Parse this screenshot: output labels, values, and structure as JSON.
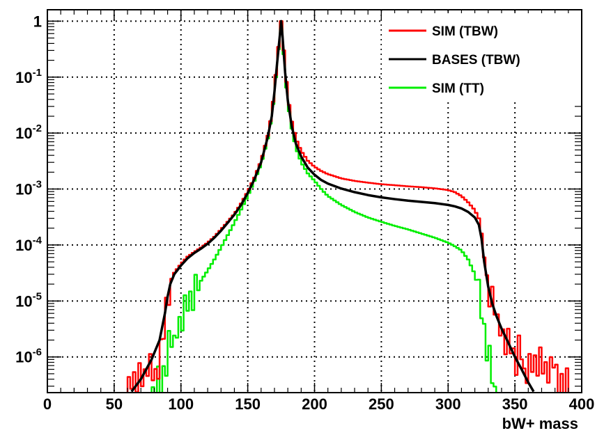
{
  "chart_data": {
    "type": "line",
    "title": "",
    "xlabel": "bW+ mass",
    "ylabel": "",
    "xlim": [
      0,
      400
    ],
    "ylim": [
      2.3e-07,
      1.6
    ],
    "yscale": "log",
    "grid": true,
    "legend_position": "top-right",
    "x_ticks": [
      "0",
      "50",
      "100",
      "150",
      "200",
      "250",
      "300",
      "350",
      "400"
    ],
    "y_ticks": [
      {
        "base": "1",
        "exp": ""
      },
      {
        "base": "10",
        "exp": "-1"
      },
      {
        "base": "10",
        "exp": "-2"
      },
      {
        "base": "10",
        "exp": "-3"
      },
      {
        "base": "10",
        "exp": "-4"
      },
      {
        "base": "10",
        "exp": "-5"
      },
      {
        "base": "10",
        "exp": "-6"
      }
    ],
    "series": [
      {
        "name": "SIM (TBW)",
        "color": "#ff0000",
        "style": "step",
        "points": [
          [
            60,
            2.4e-07
          ],
          [
            62,
            8e-07
          ],
          [
            66,
            2.5e-07
          ],
          [
            70,
            8e-07
          ],
          [
            74,
            2.5e-07
          ],
          [
            76,
            1.3e-06
          ],
          [
            80,
            5e-07
          ],
          [
            84,
            1.1e-06
          ],
          [
            86,
            1.5e-06
          ],
          [
            88,
            6e-06
          ],
          [
            90,
            1.3e-05
          ],
          [
            92,
            2.2e-05
          ],
          [
            95,
            3.2e-05
          ],
          [
            100,
            4.6e-05
          ],
          [
            105,
            6.2e-05
          ],
          [
            110,
            7.5e-05
          ],
          [
            115,
            9e-05
          ],
          [
            120,
            0.00011
          ],
          [
            125,
            0.00014
          ],
          [
            130,
            0.00019
          ],
          [
            135,
            0.00026
          ],
          [
            140,
            0.00036
          ],
          [
            145,
            0.00055
          ],
          [
            150,
            0.0009
          ],
          [
            155,
            0.0016
          ],
          [
            160,
            0.0032
          ],
          [
            165,
            0.009
          ],
          [
            168,
            0.022
          ],
          [
            170,
            0.06
          ],
          [
            172,
            0.2
          ],
          [
            174,
            0.6
          ],
          [
            175,
            1.0
          ],
          [
            176,
            0.6
          ],
          [
            178,
            0.15
          ],
          [
            180,
            0.045
          ],
          [
            183,
            0.016
          ],
          [
            186,
            0.008
          ],
          [
            190,
            0.0048
          ],
          [
            195,
            0.0032
          ],
          [
            200,
            0.0025
          ],
          [
            205,
            0.0021
          ],
          [
            210,
            0.00185
          ],
          [
            220,
            0.00155
          ],
          [
            230,
            0.0014
          ],
          [
            240,
            0.0013
          ],
          [
            250,
            0.00122
          ],
          [
            260,
            0.00117
          ],
          [
            270,
            0.00112
          ],
          [
            280,
            0.00108
          ],
          [
            290,
            0.00103
          ],
          [
            300,
            0.00096
          ],
          [
            305,
            0.00088
          ],
          [
            310,
            0.00075
          ],
          [
            315,
            0.00058
          ],
          [
            320,
            0.00042
          ],
          [
            323,
            0.0003
          ],
          [
            325,
            0.00016
          ],
          [
            327,
            6e-05
          ],
          [
            330,
            2e-05
          ],
          [
            333,
            1e-05
          ],
          [
            336,
            6e-06
          ],
          [
            340,
            3.5e-06
          ],
          [
            344,
            2.2e-06
          ],
          [
            348,
            1.5e-06
          ],
          [
            350,
            8e-07
          ],
          [
            354,
            1.6e-06
          ],
          [
            358,
            4e-07
          ],
          [
            362,
            1.6e-06
          ],
          [
            366,
            5e-07
          ],
          [
            370,
            1.5e-06
          ],
          [
            374,
            3e-07
          ],
          [
            378,
            1.3e-06
          ],
          [
            382,
            6e-07
          ],
          [
            386,
            2.5e-07
          ],
          [
            390,
            6e-07
          ]
        ]
      },
      {
        "name": "BASES (TBW)",
        "color": "#000000",
        "style": "line",
        "points": [
          [
            63,
            2.4e-07
          ],
          [
            70,
            4e-07
          ],
          [
            78,
            9e-07
          ],
          [
            84,
            2e-06
          ],
          [
            88,
            6e-06
          ],
          [
            90,
            1.2e-05
          ],
          [
            92,
            2e-05
          ],
          [
            95,
            3e-05
          ],
          [
            100,
            4.3e-05
          ],
          [
            105,
            5.8e-05
          ],
          [
            110,
            7.2e-05
          ],
          [
            115,
            8.6e-05
          ],
          [
            120,
            0.000105
          ],
          [
            125,
            0.000135
          ],
          [
            130,
            0.00018
          ],
          [
            135,
            0.00025
          ],
          [
            140,
            0.00035
          ],
          [
            145,
            0.00052
          ],
          [
            150,
            0.00085
          ],
          [
            155,
            0.0015
          ],
          [
            160,
            0.003
          ],
          [
            165,
            0.0085
          ],
          [
            168,
            0.02
          ],
          [
            170,
            0.055
          ],
          [
            172,
            0.18
          ],
          [
            174,
            0.55
          ],
          [
            175,
            1.0
          ],
          [
            176,
            0.55
          ],
          [
            178,
            0.12
          ],
          [
            180,
            0.038
          ],
          [
            183,
            0.013
          ],
          [
            186,
            0.0065
          ],
          [
            190,
            0.0038
          ],
          [
            195,
            0.0024
          ],
          [
            200,
            0.0018
          ],
          [
            205,
            0.00145
          ],
          [
            210,
            0.00125
          ],
          [
            220,
            0.00102
          ],
          [
            230,
            0.00088
          ],
          [
            240,
            0.00078
          ],
          [
            250,
            0.00071
          ],
          [
            260,
            0.00066
          ],
          [
            270,
            0.00062
          ],
          [
            280,
            0.00059
          ],
          [
            290,
            0.00056
          ],
          [
            300,
            0.00052
          ],
          [
            305,
            0.00049
          ],
          [
            310,
            0.00045
          ],
          [
            315,
            0.00039
          ],
          [
            320,
            0.00031
          ],
          [
            323,
            0.00023
          ],
          [
            325,
            0.00013
          ],
          [
            327,
            5e-05
          ],
          [
            330,
            1.8e-05
          ],
          [
            333,
            9e-06
          ],
          [
            336,
            5.5e-06
          ],
          [
            340,
            3.2e-06
          ],
          [
            345,
            1.8e-06
          ],
          [
            350,
            1e-06
          ],
          [
            355,
            6e-07
          ],
          [
            360,
            3.5e-07
          ],
          [
            364,
            2.4e-07
          ]
        ]
      },
      {
        "name": "SIM (TT)",
        "color": "#00ee00",
        "style": "step",
        "points": [
          [
            78,
            2.4e-07
          ],
          [
            82,
            5e-07
          ],
          [
            85,
            3e-07
          ],
          [
            88,
            7e-07
          ],
          [
            90,
            1.2e-06
          ],
          [
            92,
            2.2e-06
          ],
          [
            94,
            1.6e-06
          ],
          [
            96,
            3e-06
          ],
          [
            98,
            4.5e-06
          ],
          [
            100,
            6e-06
          ],
          [
            105,
            9.5e-06
          ],
          [
            110,
            1.5e-05
          ],
          [
            115,
            2.3e-05
          ],
          [
            120,
            3.5e-05
          ],
          [
            125,
            5.5e-05
          ],
          [
            130,
            9e-05
          ],
          [
            135,
            0.00015
          ],
          [
            140,
            0.00025
          ],
          [
            145,
            0.00043
          ],
          [
            150,
            0.00075
          ],
          [
            155,
            0.0014
          ],
          [
            160,
            0.0028
          ],
          [
            165,
            0.008
          ],
          [
            168,
            0.02
          ],
          [
            170,
            0.055
          ],
          [
            172,
            0.18
          ],
          [
            174,
            0.55
          ],
          [
            175,
            1.0
          ],
          [
            176,
            0.55
          ],
          [
            178,
            0.12
          ],
          [
            180,
            0.035
          ],
          [
            183,
            0.012
          ],
          [
            186,
            0.0055
          ],
          [
            190,
            0.003
          ],
          [
            195,
            0.0019
          ],
          [
            200,
            0.0014
          ],
          [
            205,
            0.001
          ],
          [
            210,
            0.00075
          ],
          [
            220,
            0.00052
          ],
          [
            230,
            0.00039
          ],
          [
            240,
            0.00031
          ],
          [
            250,
            0.00026
          ],
          [
            260,
            0.00022
          ],
          [
            270,
            0.00019
          ],
          [
            280,
            0.00016
          ],
          [
            290,
            0.000135
          ],
          [
            300,
            0.00011
          ],
          [
            305,
            9.5e-05
          ],
          [
            310,
            8e-05
          ],
          [
            315,
            5.5e-05
          ],
          [
            320,
            3e-05
          ],
          [
            323,
            1.5e-05
          ],
          [
            325,
            7e-06
          ],
          [
            327,
            3e-06
          ],
          [
            330,
            1.3e-06
          ],
          [
            332,
            6e-07
          ],
          [
            334,
            3e-07
          ],
          [
            336,
            2.4e-07
          ]
        ]
      }
    ]
  }
}
